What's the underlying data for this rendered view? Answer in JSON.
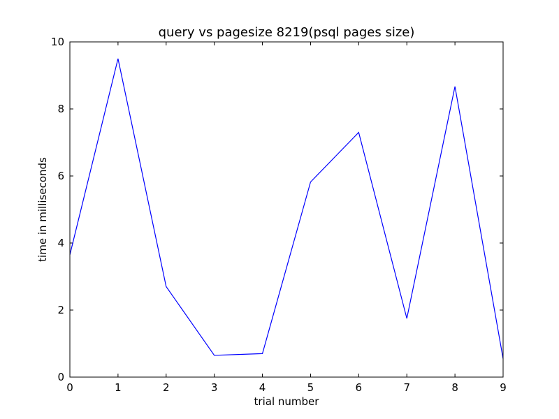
{
  "chart_data": {
    "type": "line",
    "title": "query vs pagesize 8219(psql pages size)",
    "xlabel": "trial number",
    "ylabel": "time in milliseconds",
    "xlim": [
      0,
      9
    ],
    "ylim": [
      0,
      10
    ],
    "xticks": [
      0,
      1,
      2,
      3,
      4,
      5,
      6,
      7,
      8,
      9
    ],
    "yticks": [
      0,
      2,
      4,
      6,
      8,
      10
    ],
    "grid": false,
    "series": [
      {
        "color": "#0000ff",
        "x": [
          0,
          1,
          2,
          3,
          4,
          5,
          6,
          7,
          8,
          9
        ],
        "y": [
          3.65,
          9.5,
          2.7,
          0.65,
          0.7,
          5.82,
          7.3,
          1.75,
          8.67,
          0.55
        ]
      }
    ]
  }
}
